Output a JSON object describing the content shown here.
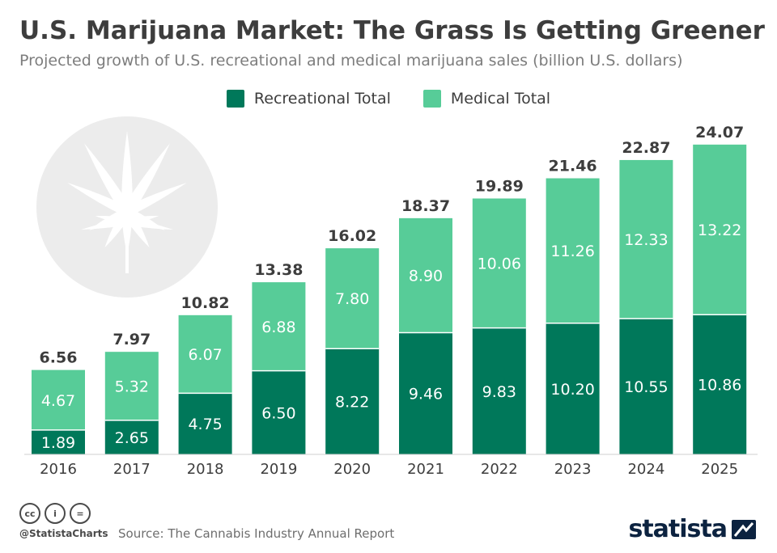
{
  "title": "U.S. Marijuana Market: The Grass Is Getting Greener",
  "subtitle": "Projected growth of U.S. recreational and medical marijuana sales (billion U.S. dollars)",
  "legend": [
    {
      "label": "Recreational Total",
      "color": "#00785a"
    },
    {
      "label": "Medical Total",
      "color": "#57cc98"
    }
  ],
  "footer": {
    "handle": "@StatistaCharts",
    "source": "Source: The Cannabis Industry Annual Report",
    "brand": "statista",
    "license_icons": [
      "cc-icon",
      "by-icon",
      "nd-icon"
    ],
    "license_glyphs": [
      "cc",
      "i",
      "="
    ]
  },
  "chart_data": {
    "type": "bar",
    "stacked": true,
    "categories": [
      "2016",
      "2017",
      "2018",
      "2019",
      "2020",
      "2021",
      "2022",
      "2023",
      "2024",
      "2025"
    ],
    "series": [
      {
        "name": "Recreational Total",
        "color": "#00785a",
        "values": [
          1.89,
          2.65,
          4.75,
          6.5,
          8.22,
          9.46,
          9.83,
          10.2,
          10.55,
          10.86
        ]
      },
      {
        "name": "Medical Total",
        "color": "#57cc98",
        "values": [
          4.67,
          5.32,
          6.07,
          6.88,
          7.8,
          8.9,
          10.06,
          11.26,
          12.33,
          13.22
        ]
      }
    ],
    "segment_labels": [
      [
        "1.89",
        "2.65",
        "4.75",
        "6.50",
        "8.22",
        "9.46",
        "9.83",
        "10.20",
        "10.55",
        "10.86"
      ],
      [
        "4.67",
        "5.32",
        "6.07",
        "6.88",
        "7.80",
        "8.90",
        "10.06",
        "11.26",
        "12.33",
        "13.22"
      ]
    ],
    "total_labels": [
      "6.56",
      "7.97",
      "10.82",
      "13.38",
      "16.02",
      "18.37",
      "19.89",
      "21.46",
      "22.87",
      "24.07"
    ],
    "ylim": [
      0,
      24.07
    ],
    "grid": false,
    "legend_position": "top-center"
  }
}
